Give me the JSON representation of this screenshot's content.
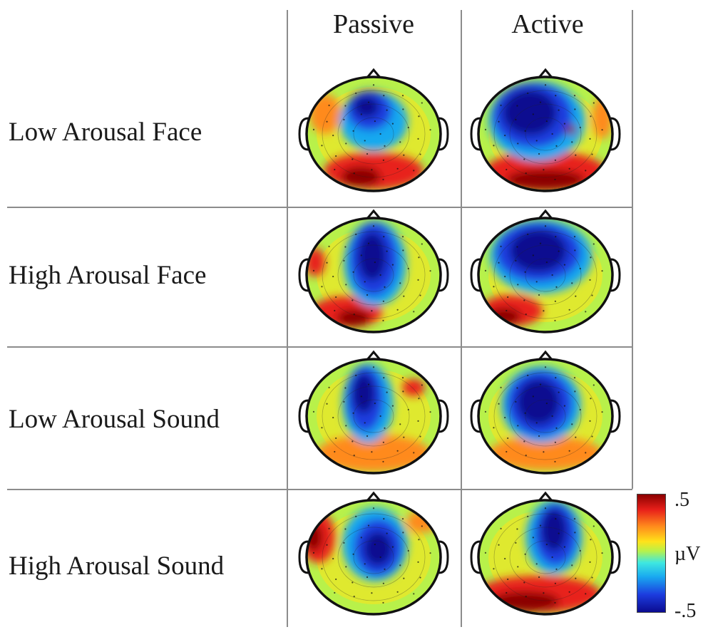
{
  "columns": [
    "Passive",
    "Active"
  ],
  "rows": [
    "Low Arousal Face",
    "High Arousal Face",
    "Low Arousal Sound",
    "High Arousal Sound"
  ],
  "topomaps": [
    {
      "row": "Low Arousal Face",
      "condition": "Passive",
      "pattern": "central negativity, posterior positivity"
    },
    {
      "row": "Low Arousal Face",
      "condition": "Active",
      "pattern": "broad frontocentral negativity, strong posterior positivity"
    },
    {
      "row": "High Arousal Face",
      "condition": "Passive",
      "pattern": "central negativity, posterior positivity"
    },
    {
      "row": "High Arousal Face",
      "condition": "Active",
      "pattern": "broad frontocentral negativity, posterior positivity"
    },
    {
      "row": "Low Arousal Sound",
      "condition": "Passive",
      "pattern": "frontocentral negativity, posterior positivity"
    },
    {
      "row": "Low Arousal Sound",
      "condition": "Active",
      "pattern": "central negativity"
    },
    {
      "row": "High Arousal Sound",
      "condition": "Passive",
      "pattern": "central negativity, lateral positivity"
    },
    {
      "row": "High Arousal Sound",
      "condition": "Active",
      "pattern": "central negativity, strong posterior positivity"
    }
  ],
  "colorbar": {
    "max_label": ".5",
    "unit_label": "µV",
    "min_label": "-.5",
    "colormap": "jet"
  },
  "colors": {
    "dark_red": "#8b0000",
    "red": "#e8201a",
    "orange": "#ff8a1c",
    "yellow": "#ffe21a",
    "green": "#b8f14a",
    "cyan": "#3ee8e0",
    "light_blue": "#19a9f0",
    "blue": "#1c3ddf",
    "dark_blue": "#0b0b90"
  }
}
